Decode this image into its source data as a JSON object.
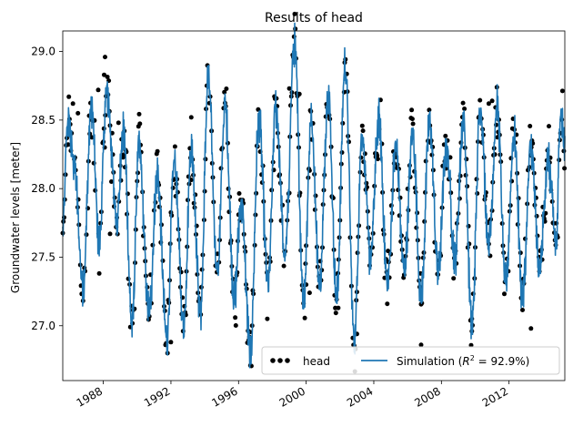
{
  "chart_data": {
    "type": "line",
    "title": "Results of head",
    "xlabel": "",
    "ylabel": "Groundwater levels [meter]",
    "xlim": [
      1985.6,
      2015.3
    ],
    "ylim": [
      26.6,
      29.15
    ],
    "xticks": [
      1988,
      1992,
      1996,
      2000,
      2004,
      2008,
      2012
    ],
    "yticks": [
      27.0,
      27.5,
      28.0,
      28.5,
      29.0
    ],
    "ytick_labels": [
      "27.0",
      "27.5",
      "28.0",
      "28.5",
      "29.0"
    ],
    "grid": false,
    "legend_position": "lower-right",
    "series": [
      {
        "name": "head",
        "kind": "scatter",
        "color": "#000000"
      },
      {
        "name": "Simulation",
        "kind": "line",
        "color": "#1f77b4",
        "r2": "92.9%"
      }
    ],
    "peaks": [
      [
        1985.6,
        27.7
      ],
      [
        1985.9,
        28.5
      ],
      [
        1986.25,
        28.2
      ],
      [
        1986.8,
        27.3
      ],
      [
        1987.3,
        28.6
      ],
      [
        1987.75,
        27.6
      ],
      [
        1988.2,
        28.7
      ],
      [
        1988.8,
        27.8
      ],
      [
        1989.2,
        28.4
      ],
      [
        1989.7,
        27.0
      ],
      [
        1990.1,
        28.3
      ],
      [
        1990.7,
        27.1
      ],
      [
        1991.2,
        28.1
      ],
      [
        1991.75,
        26.9
      ],
      [
        1992.2,
        28.2
      ],
      [
        1992.75,
        27.0
      ],
      [
        1993.2,
        28.3
      ],
      [
        1993.75,
        27.1
      ],
      [
        1994.2,
        28.8
      ],
      [
        1994.75,
        27.4
      ],
      [
        1995.2,
        28.6
      ],
      [
        1995.75,
        27.2
      ],
      [
        1996.15,
        27.9
      ],
      [
        1996.7,
        26.8
      ],
      [
        1997.2,
        28.5
      ],
      [
        1997.75,
        27.3
      ],
      [
        1998.2,
        28.6
      ],
      [
        1998.75,
        27.5
      ],
      [
        1999.3,
        29.05
      ],
      [
        1999.85,
        27.2
      ],
      [
        2000.3,
        28.5
      ],
      [
        2000.8,
        27.3
      ],
      [
        2001.3,
        28.7
      ],
      [
        2001.8,
        27.2
      ],
      [
        2002.3,
        28.9
      ],
      [
        2002.85,
        26.9
      ],
      [
        2003.3,
        28.4
      ],
      [
        2003.8,
        27.5
      ],
      [
        2004.3,
        28.5
      ],
      [
        2004.8,
        27.3
      ],
      [
        2005.3,
        28.3
      ],
      [
        2005.8,
        27.4
      ],
      [
        2006.3,
        28.4
      ],
      [
        2006.8,
        27.2
      ],
      [
        2007.3,
        28.5
      ],
      [
        2007.8,
        27.4
      ],
      [
        2008.3,
        28.3
      ],
      [
        2008.8,
        27.5
      ],
      [
        2009.3,
        28.5
      ],
      [
        2009.8,
        27.0
      ],
      [
        2010.3,
        28.6
      ],
      [
        2010.8,
        27.6
      ],
      [
        2011.3,
        28.6
      ],
      [
        2011.8,
        27.3
      ],
      [
        2012.3,
        28.4
      ],
      [
        2012.8,
        27.2
      ],
      [
        2013.3,
        28.3
      ],
      [
        2013.8,
        27.4
      ],
      [
        2014.3,
        28.2
      ],
      [
        2014.8,
        27.6
      ],
      [
        2015.05,
        28.6
      ],
      [
        2015.3,
        28.3
      ]
    ],
    "observations": [
      [
        1986.2,
        28.62
      ],
      [
        1986.5,
        28.55
      ],
      [
        1987.7,
        28.72
      ],
      [
        1988.1,
        28.96
      ],
      [
        1988.05,
        28.83
      ],
      [
        1988.4,
        27.67
      ],
      [
        1988.9,
        28.48
      ],
      [
        1991.8,
        26.8
      ],
      [
        1992.0,
        26.88
      ],
      [
        1993.2,
        28.52
      ],
      [
        1996.7,
        26.71
      ],
      [
        1997.7,
        27.05
      ],
      [
        1999.0,
        28.73
      ],
      [
        1999.6,
        28.69
      ],
      [
        2000.0,
        27.3
      ],
      [
        2000.2,
        27.24
      ],
      [
        2001.9,
        27.13
      ],
      [
        2003.0,
        26.94
      ],
      [
        2006.8,
        26.86
      ],
      [
        2009.8,
        26.96
      ],
      [
        2010.8,
        28.62
      ],
      [
        2011.0,
        28.64
      ],
      [
        2013.3,
        26.98
      ]
    ]
  }
}
